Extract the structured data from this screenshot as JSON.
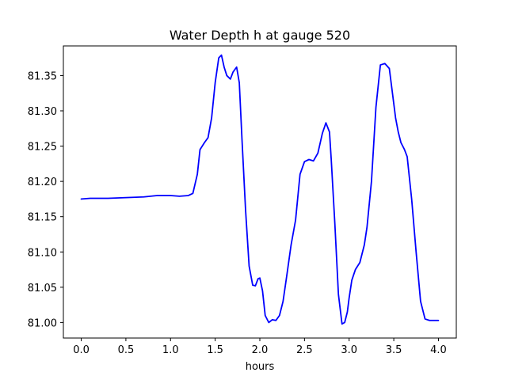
{
  "chart_data": {
    "type": "line",
    "title": "Water Depth h at gauge 520",
    "xlabel": "hours",
    "ylabel": "",
    "xlim": [
      -0.2,
      4.2
    ],
    "ylim": [
      80.978,
      81.392
    ],
    "x_ticks": [
      0.0,
      0.5,
      1.0,
      1.5,
      2.0,
      2.5,
      3.0,
      3.5,
      4.0
    ],
    "x_tick_labels": [
      "0.0",
      "0.5",
      "1.0",
      "1.5",
      "2.0",
      "2.5",
      "3.0",
      "3.5",
      "4.0"
    ],
    "y_ticks": [
      81.0,
      81.05,
      81.1,
      81.15,
      81.2,
      81.25,
      81.3,
      81.35
    ],
    "y_tick_labels": [
      "81.00",
      "81.05",
      "81.10",
      "81.15",
      "81.20",
      "81.25",
      "81.30",
      "81.35"
    ],
    "grid": false,
    "series": [
      {
        "color": "#0000ff",
        "x": [
          0.0,
          0.1,
          0.3,
          0.5,
          0.7,
          0.85,
          1.0,
          1.1,
          1.2,
          1.25,
          1.3,
          1.33,
          1.38,
          1.42,
          1.46,
          1.5,
          1.54,
          1.57,
          1.6,
          1.63,
          1.67,
          1.7,
          1.74,
          1.77,
          1.8,
          1.84,
          1.88,
          1.92,
          1.95,
          1.98,
          2.0,
          2.03,
          2.06,
          2.1,
          2.14,
          2.18,
          2.22,
          2.26,
          2.3,
          2.35,
          2.4,
          2.45,
          2.5,
          2.55,
          2.6,
          2.65,
          2.7,
          2.74,
          2.78,
          2.8,
          2.84,
          2.88,
          2.92,
          2.95,
          2.98,
          3.0,
          3.03,
          3.07,
          3.12,
          3.17,
          3.2,
          3.25,
          3.3,
          3.35,
          3.4,
          3.45,
          3.48,
          3.52,
          3.55,
          3.58,
          3.62,
          3.65,
          3.7,
          3.75,
          3.8,
          3.85,
          3.9,
          3.94,
          3.97,
          4.0
        ],
        "values": [
          81.175,
          81.176,
          81.176,
          81.177,
          81.178,
          81.18,
          81.18,
          81.179,
          81.18,
          81.183,
          81.21,
          81.245,
          81.255,
          81.262,
          81.29,
          81.34,
          81.375,
          81.379,
          81.362,
          81.35,
          81.345,
          81.355,
          81.362,
          81.34,
          81.26,
          81.16,
          81.08,
          81.053,
          81.052,
          81.062,
          81.063,
          81.045,
          81.01,
          81.0,
          81.004,
          81.003,
          81.01,
          81.03,
          81.065,
          81.11,
          81.145,
          81.21,
          81.228,
          81.231,
          81.229,
          81.24,
          81.268,
          81.283,
          81.27,
          81.23,
          81.14,
          81.04,
          80.998,
          81.0,
          81.015,
          81.035,
          81.06,
          81.075,
          81.085,
          81.11,
          81.135,
          81.2,
          81.305,
          81.365,
          81.367,
          81.36,
          81.33,
          81.29,
          81.27,
          81.255,
          81.245,
          81.235,
          81.175,
          81.1,
          81.03,
          81.005,
          81.003,
          81.003,
          81.003,
          81.003
        ]
      }
    ]
  }
}
